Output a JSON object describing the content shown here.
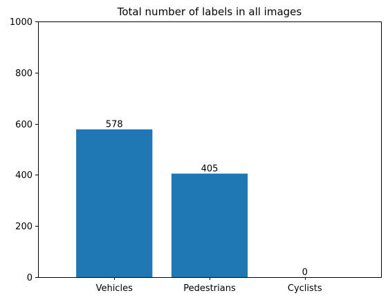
{
  "chart_data": {
    "type": "bar",
    "title": "Total number of labels in all images",
    "xlabel": "",
    "ylabel": "",
    "categories": [
      "Vehicles",
      "Pedestrians",
      "Cyclists"
    ],
    "values": [
      578,
      405,
      0
    ],
    "data_labels": [
      "578",
      "405",
      "0"
    ],
    "ylim": [
      0,
      1000
    ],
    "yticks": [
      0,
      200,
      400,
      600,
      800,
      1000
    ],
    "ytick_labels": [
      "0",
      "200",
      "400",
      "600",
      "800",
      "1000"
    ],
    "grid": false,
    "legend": "none",
    "bar_color": "#1f77b4"
  }
}
